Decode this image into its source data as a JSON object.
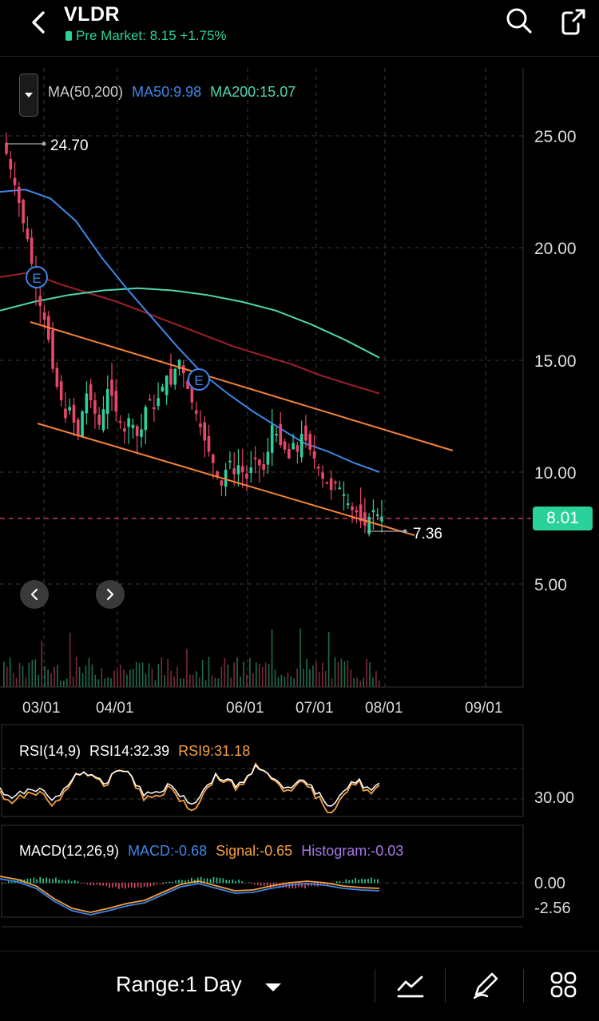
{
  "header": {
    "ticker": "VLDR",
    "premarket": "Pre Market: 8.15 +1.75%"
  },
  "ma_legend": {
    "label": "MA(50,200)",
    "ma50": "MA50:9.98",
    "ma200": "MA200:15.07"
  },
  "price": {
    "current_tag": "8.01",
    "high_label": "24.70",
    "low_label": "7.36"
  },
  "rsi": {
    "label": "RSI(14,9)",
    "rsi14": "RSI14:32.39",
    "rsi9": "RSI9:31.18",
    "level": "30.00"
  },
  "macd": {
    "label": "MACD(12,26,9)",
    "macd": "MACD:-0.68",
    "signal": "Signal:-0.65",
    "histogram": "Histogram:-0.03",
    "axis_top": "0.00",
    "axis_bottom": "-2.56"
  },
  "footer": {
    "range": "Range:1 Day"
  },
  "colors": {
    "up": "#2bd19b",
    "down": "#e8476a",
    "ma50": "#3f86e8",
    "ma200": "#4fd8b0",
    "ma_dark": "#a01f2a",
    "trend": "#f5823a",
    "rsi14": "#ffffff",
    "rsi9": "#f5a040",
    "macd": "#3f86e8",
    "signal": "#f5a040",
    "histogram": "#a678e8"
  },
  "chart_data": {
    "type": "candlestick",
    "y_axis_ticks": [
      "25.00",
      "20.00",
      "15.00",
      "10.00",
      "5.00"
    ],
    "ylim": [
      5,
      25
    ],
    "x_axis_ticks": [
      "03/01",
      "04/01",
      "06/01",
      "07/01",
      "08/01",
      "09/01"
    ],
    "closes": [
      24.2,
      23.5,
      22.8,
      22.0,
      21.1,
      20.4,
      19.3,
      18.2,
      17.4,
      16.8,
      15.9,
      14.6,
      13.8,
      13.2,
      12.4,
      12.9,
      12.2,
      11.6,
      12.7,
      13.5,
      13.2,
      12.6,
      12.1,
      12.8,
      13.7,
      13.4,
      12.7,
      12.2,
      11.8,
      12.4,
      12.1,
      11.6,
      11.9,
      12.9,
      13.2,
      12.8,
      13.3,
      13.8,
      14.3,
      13.9,
      14.6,
      15.0,
      14.4,
      13.7,
      13.1,
      12.6,
      12.0,
      11.4,
      10.9,
      10.4,
      9.8,
      9.4,
      10.1,
      10.5,
      9.9,
      10.3,
      10.0,
      9.7,
      10.2,
      10.6,
      10.3,
      10.1,
      10.9,
      12.1,
      11.7,
      11.2,
      11.0,
      10.6,
      11.3,
      10.9,
      11.7,
      11.4,
      11.0,
      10.6,
      10.2,
      9.7,
      9.5,
      9.2,
      9.5,
      9.3,
      9.0,
      8.6,
      8.3,
      8.2,
      7.8,
      7.6,
      8.0,
      8.3,
      8.1,
      8.01
    ],
    "ma50": [
      22.5,
      22.6,
      22.2,
      21.2,
      19.6,
      18.2,
      16.9,
      15.6,
      14.4,
      13.5,
      12.7,
      12.0,
      11.3,
      10.9,
      10.4,
      10.0
    ],
    "ma200": [
      17.2,
      17.6,
      17.9,
      18.1,
      18.2,
      18.1,
      17.9,
      17.6,
      17.2,
      16.6,
      15.9,
      15.1
    ]
  }
}
